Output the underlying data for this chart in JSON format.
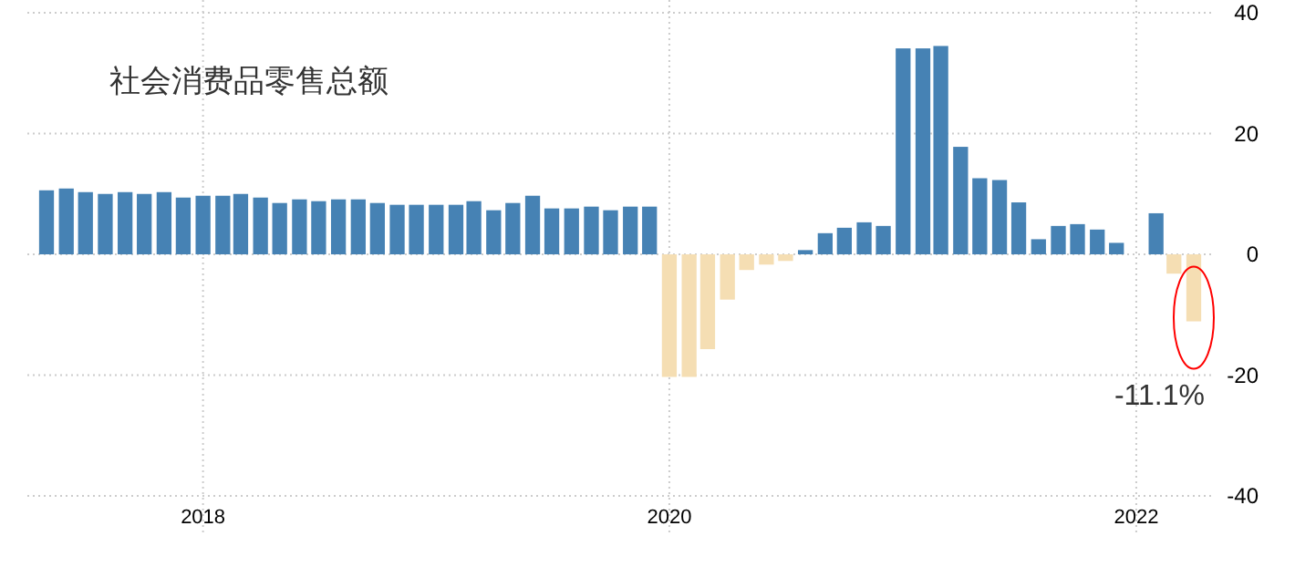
{
  "chart_data": {
    "type": "bar",
    "title": "社会消费品零售总额",
    "x": [
      "2017-05",
      "2017-06",
      "2017-07",
      "2017-08",
      "2017-09",
      "2017-10",
      "2017-11",
      "2017-12",
      "2018-01",
      "2018-02",
      "2018-03",
      "2018-04",
      "2018-05",
      "2018-06",
      "2018-07",
      "2018-08",
      "2018-09",
      "2018-10",
      "2018-11",
      "2018-12",
      "2019-01",
      "2019-02",
      "2019-03",
      "2019-04",
      "2019-05",
      "2019-06",
      "2019-07",
      "2019-08",
      "2019-09",
      "2019-10",
      "2019-11",
      "2019-12",
      "2020-01",
      "2020-02",
      "2020-03",
      "2020-04",
      "2020-05",
      "2020-06",
      "2020-07",
      "2020-08",
      "2020-09",
      "2020-10",
      "2020-11",
      "2020-12",
      "2021-01",
      "2021-02",
      "2021-03",
      "2021-04",
      "2021-05",
      "2021-06",
      "2021-07",
      "2021-08",
      "2021-09",
      "2021-10",
      "2021-11",
      "2021-12",
      "2022-02",
      "2022-03",
      "2022-04"
    ],
    "values": [
      10.6,
      10.9,
      10.3,
      10.0,
      10.3,
      10.0,
      10.3,
      9.4,
      9.7,
      9.7,
      10.0,
      9.4,
      8.5,
      9.1,
      8.8,
      9.1,
      9.1,
      8.5,
      8.2,
      8.2,
      8.2,
      8.2,
      8.8,
      7.3,
      8.5,
      9.7,
      7.6,
      7.6,
      7.9,
      7.3,
      7.9,
      7.9,
      -20.3,
      -20.3,
      -15.7,
      -7.5,
      -2.6,
      -1.7,
      -1.1,
      0.7,
      3.5,
      4.4,
      5.3,
      4.7,
      34.1,
      34.1,
      34.5,
      17.8,
      12.6,
      12.3,
      8.6,
      2.5,
      4.7,
      5.0,
      4.1,
      1.9,
      6.8,
      -3.2,
      -11.1
    ],
    "colors": [
      "#4682b4",
      "#4682b4",
      "#4682b4",
      "#4682b4",
      "#4682b4",
      "#4682b4",
      "#4682b4",
      "#4682b4",
      "#4682b4",
      "#4682b4",
      "#4682b4",
      "#4682b4",
      "#4682b4",
      "#4682b4",
      "#4682b4",
      "#4682b4",
      "#4682b4",
      "#4682b4",
      "#4682b4",
      "#4682b4",
      "#4682b4",
      "#4682b4",
      "#4682b4",
      "#4682b4",
      "#4682b4",
      "#4682b4",
      "#4682b4",
      "#4682b4",
      "#4682b4",
      "#4682b4",
      "#4682b4",
      "#4682b4",
      "#f5deb3",
      "#f5deb3",
      "#f5deb3",
      "#f5deb3",
      "#f5deb3",
      "#f5deb3",
      "#f5deb3",
      "#4682b4",
      "#4682b4",
      "#4682b4",
      "#4682b4",
      "#4682b4",
      "#4682b4",
      "#4682b4",
      "#4682b4",
      "#4682b4",
      "#4682b4",
      "#4682b4",
      "#4682b4",
      "#4682b4",
      "#4682b4",
      "#4682b4",
      "#4682b4",
      "#4682b4",
      "#4682b4",
      "#f5deb3",
      "#f5deb3"
    ],
    "xlim": [
      "2017-04",
      "2022-05"
    ],
    "xticks": [
      "2018",
      "2020",
      "2022"
    ],
    "ylim": [
      -40,
      40
    ],
    "yticks": [
      -40,
      -20,
      0,
      20,
      40
    ],
    "grid": true,
    "annotations": [
      {
        "text": "-11.1%",
        "x": "2022-04",
        "y": -11.1
      }
    ]
  }
}
